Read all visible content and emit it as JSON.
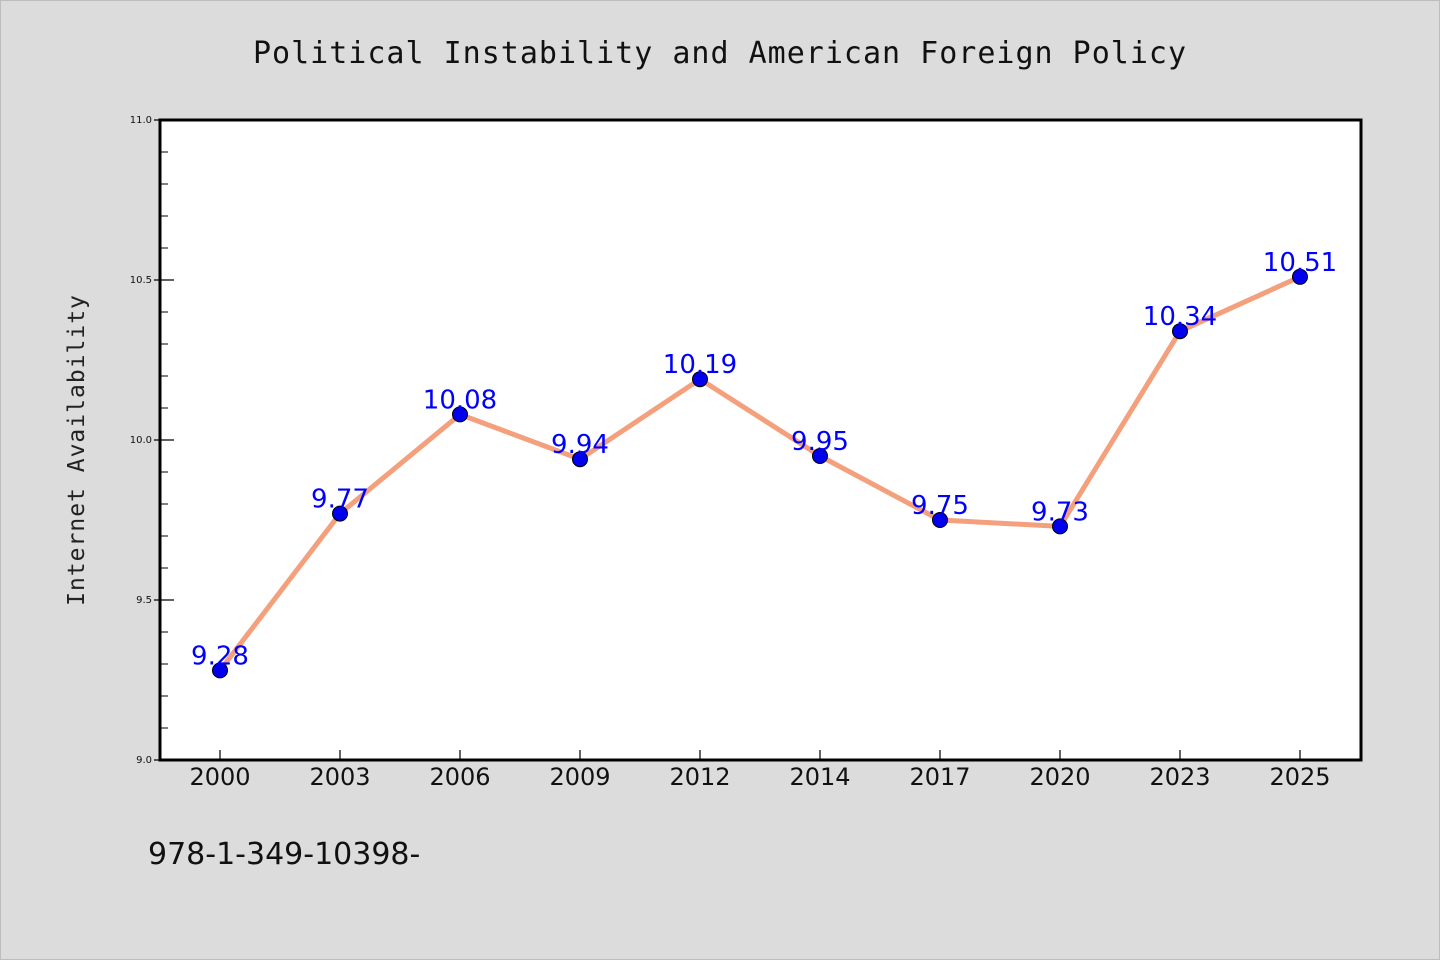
{
  "chart_data": {
    "type": "line",
    "title": "Political Instability and American Foreign Policy",
    "xlabel": "",
    "ylabel": "Internet Availability",
    "categories": [
      "2000",
      "2003",
      "2006",
      "2009",
      "2012",
      "2014",
      "2017",
      "2020",
      "2023",
      "2025"
    ],
    "series": [
      {
        "values": [
          9.28,
          9.77,
          10.08,
          9.94,
          10.19,
          9.95,
          9.75,
          9.73,
          10.34,
          10.51
        ],
        "data_labels": [
          "9.28",
          "9.77",
          "10.08",
          "9.94",
          "10.19",
          "9.95",
          "9.75",
          "9.73",
          "10.34",
          "10.51"
        ],
        "line_color": "#f4a07c",
        "marker_color": "#0000ee",
        "label_color": "#0000ff"
      }
    ],
    "ylim": [
      9.0,
      11.0
    ],
    "yticks": [
      "9.0",
      "9.5",
      "10.0",
      "10.5",
      "11.0"
    ],
    "grid": false,
    "legend": "none"
  },
  "footnote": "978-1-349-10398-",
  "colors": {
    "page_background": "#dcdcdc",
    "plot_background": "#ffffff",
    "axes": "#000000"
  }
}
